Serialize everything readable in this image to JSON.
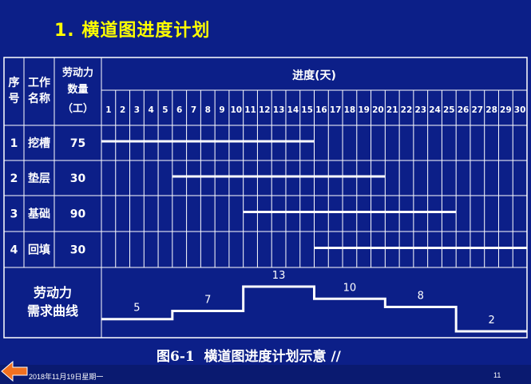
{
  "slide_title": "1. 横道图进度计划",
  "table": {
    "header_seq": [
      "序",
      "号"
    ],
    "header_name": [
      "工作",
      "名称"
    ],
    "header_labor": [
      "劳动力",
      "数量",
      "（工）"
    ],
    "header_progress": "进度(天)",
    "days": [
      "1",
      "2",
      "3",
      "4",
      "5",
      "6",
      "7",
      "8",
      "9",
      "10",
      "11",
      "12",
      "13",
      "14",
      "15",
      "16",
      "17",
      "18",
      "19",
      "20",
      "21",
      "22",
      "23",
      "24",
      "25",
      "26",
      "27",
      "28",
      "29",
      "30"
    ],
    "rows": [
      {
        "seq": "1",
        "name": "挖槽",
        "labor": "75"
      },
      {
        "seq": "2",
        "name": "垫层",
        "labor": "30"
      },
      {
        "seq": "3",
        "name": "基础",
        "labor": "90"
      },
      {
        "seq": "4",
        "name": "回填",
        "labor": "30"
      }
    ],
    "curve_label": [
      "劳动力",
      "需求曲线"
    ]
  },
  "chart_data": {
    "type": "gantt",
    "x_days": [
      1,
      30
    ],
    "tasks": [
      {
        "name": "挖槽",
        "start": 1,
        "end": 15,
        "labor": 75
      },
      {
        "name": "垫层",
        "start": 6,
        "end": 20,
        "labor": 30
      },
      {
        "name": "基础",
        "start": 11,
        "end": 25,
        "labor": 90
      },
      {
        "name": "回填",
        "start": 16,
        "end": 30,
        "labor": 30
      }
    ],
    "labor_curve": [
      {
        "start": 1,
        "end": 5,
        "value": 5
      },
      {
        "start": 6,
        "end": 10,
        "value": 7
      },
      {
        "start": 11,
        "end": 15,
        "value": 13
      },
      {
        "start": 16,
        "end": 20,
        "value": 10
      },
      {
        "start": 21,
        "end": 25,
        "value": 8
      },
      {
        "start": 26,
        "end": 30,
        "value": 2
      }
    ]
  },
  "caption": "图6-1  横道图进度计划示意 //",
  "footer": {
    "date": "2018年11月19日星期一",
    "page": "11",
    "back_icon": "orange-left-arrow-icon"
  },
  "colors": {
    "background": "#0c1f88",
    "title": "#ffff00",
    "lines": "#ffffff",
    "arrow": "#f07020"
  }
}
